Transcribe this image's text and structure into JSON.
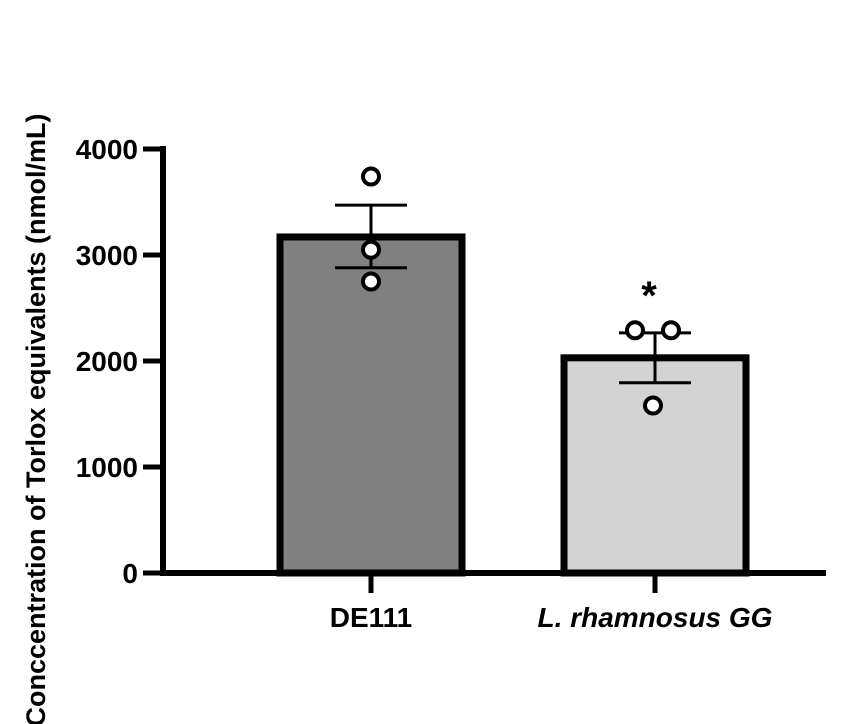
{
  "chart_data": {
    "type": "bar",
    "title": "",
    "xlabel": "",
    "ylabel": "Conccentration of Torlox equivalents  (nmol/mL)",
    "ylim": [
      0,
      4000
    ],
    "yticks": [
      "0",
      "1000",
      "2000",
      "3000",
      "4000"
    ],
    "categories": [
      "DE111",
      "L. rhamnosus GG"
    ],
    "values": [
      3170,
      2030
    ],
    "error_upper": [
      3470,
      2265
    ],
    "error_lower": [
      2880,
      1795
    ],
    "points": [
      [
        3740,
        3050,
        2750
      ],
      [
        2290,
        2290,
        1580
      ]
    ],
    "significance": [
      "",
      "*"
    ],
    "bar_colors": [
      "#808080",
      "#d3d3d3"
    ],
    "grid": false
  }
}
